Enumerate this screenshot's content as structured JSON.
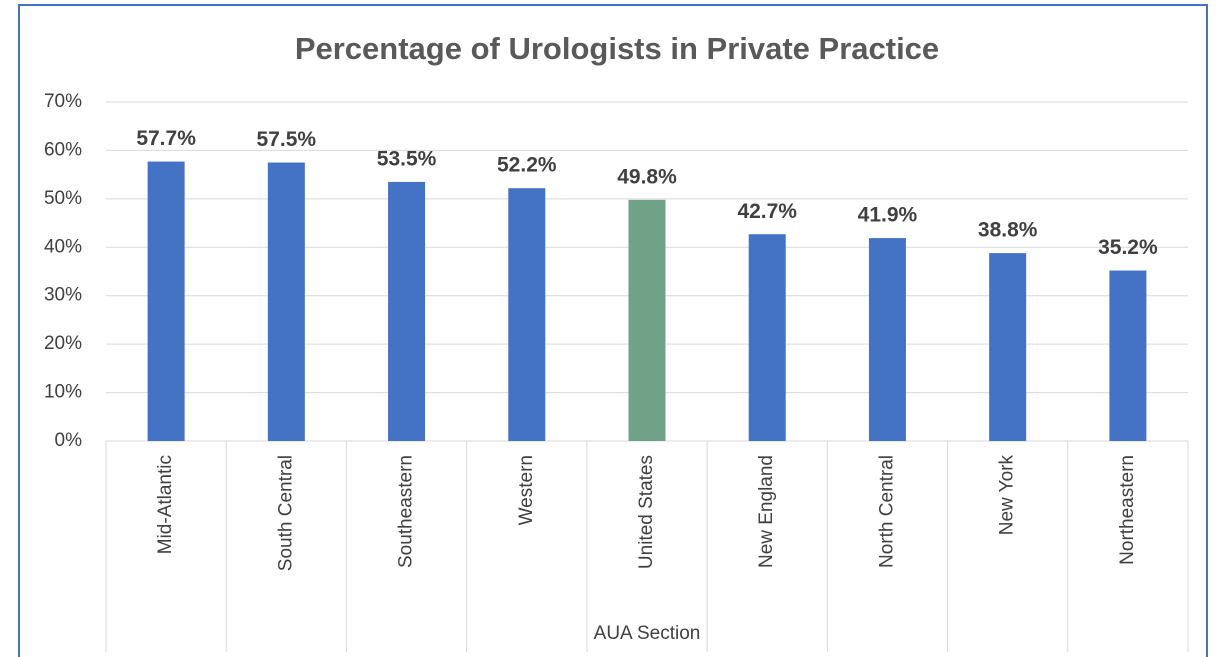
{
  "chart_data": {
    "type": "bar",
    "title": "Percentage of Urologists in Private Practice",
    "x_label": "AUA Section",
    "categories": [
      "Mid-Atlantic",
      "South Central",
      "Southeastern",
      "Western",
      "United States",
      "New England",
      "North Central",
      "New York",
      "Northeastern"
    ],
    "values": [
      57.7,
      57.5,
      53.5,
      52.2,
      49.8,
      42.7,
      41.9,
      38.8,
      35.2
    ],
    "value_labels": [
      "57.7%",
      "57.5%",
      "53.5%",
      "52.2%",
      "49.8%",
      "42.7%",
      "41.9%",
      "38.8%",
      "35.2%"
    ],
    "colors": [
      "#4472c4",
      "#4472c4",
      "#4472c4",
      "#4472c4",
      "#6fa287",
      "#4472c4",
      "#4472c4",
      "#4472c4",
      "#4472c4"
    ],
    "ylim": [
      0,
      70
    ],
    "yticks": [
      {
        "value": 0,
        "label": "0%"
      },
      {
        "value": 10,
        "label": "10%"
      },
      {
        "value": 20,
        "label": "20%"
      },
      {
        "value": 30,
        "label": "30%"
      },
      {
        "value": 40,
        "label": "40%"
      },
      {
        "value": 50,
        "label": "50%"
      },
      {
        "value": 60,
        "label": "60%"
      },
      {
        "value": 70,
        "label": "70%"
      }
    ],
    "grid": true
  }
}
